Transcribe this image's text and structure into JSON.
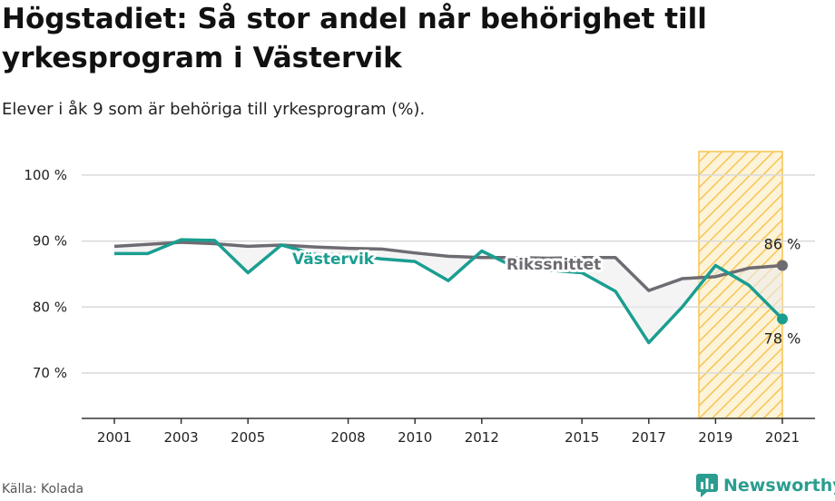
{
  "title": "Högstadiet: Så stor andel når behörighet till yrkesprogram i Västervik",
  "subtitle": "Elever i åk 9 som är behöriga till yrkesprogram (%).",
  "source": "Källa: Kolada",
  "logo_text": "Newsworthy",
  "colors": {
    "vastervik": "#1a9e90",
    "riket": "#6e6b72",
    "highlight": "#f5c451",
    "grid": "#d9d9d9"
  },
  "chart_data": {
    "type": "line",
    "title": "Högstadiet: Så stor andel når behörighet till yrkesprogram i Västervik",
    "subtitle": "Elever i åk 9 som är behöriga till yrkesprogram (%).",
    "xlabel": "",
    "ylabel": "",
    "x": [
      2001,
      2002,
      2003,
      2004,
      2005,
      2006,
      2007,
      2008,
      2009,
      2010,
      2011,
      2012,
      2013,
      2014,
      2015,
      2016,
      2017,
      2018,
      2019,
      2020,
      2021
    ],
    "x_ticks": [
      "2001",
      "2003",
      "2005",
      "2008",
      "2010",
      "2012",
      "2015",
      "2017",
      "2019",
      "2021"
    ],
    "y_ticks": [
      "70 %",
      "80 %",
      "90 %",
      "100 %"
    ],
    "ylim": [
      63,
      104
    ],
    "xlim": [
      2000.0,
      2022.0
    ],
    "grid": true,
    "highlight_range": [
      2018.5,
      2021.0
    ],
    "series": [
      {
        "name": "Västervik",
        "values": [
          88.1,
          88.1,
          90.2,
          90.1,
          85.2,
          89.4,
          88.0,
          87.9,
          87.3,
          86.9,
          84.0,
          88.5,
          86.0,
          85.6,
          85.2,
          82.4,
          74.6,
          80.0,
          86.3,
          83.3,
          78.2
        ],
        "end_label": "78 %"
      },
      {
        "name": "Rikssnittet",
        "values": [
          89.2,
          89.5,
          89.8,
          89.6,
          89.2,
          89.4,
          89.1,
          88.9,
          88.8,
          88.2,
          87.7,
          87.5,
          87.5,
          87.4,
          87.5,
          87.5,
          82.5,
          84.3,
          84.6,
          85.9,
          86.3
        ],
        "end_label": "86 %"
      }
    ]
  }
}
